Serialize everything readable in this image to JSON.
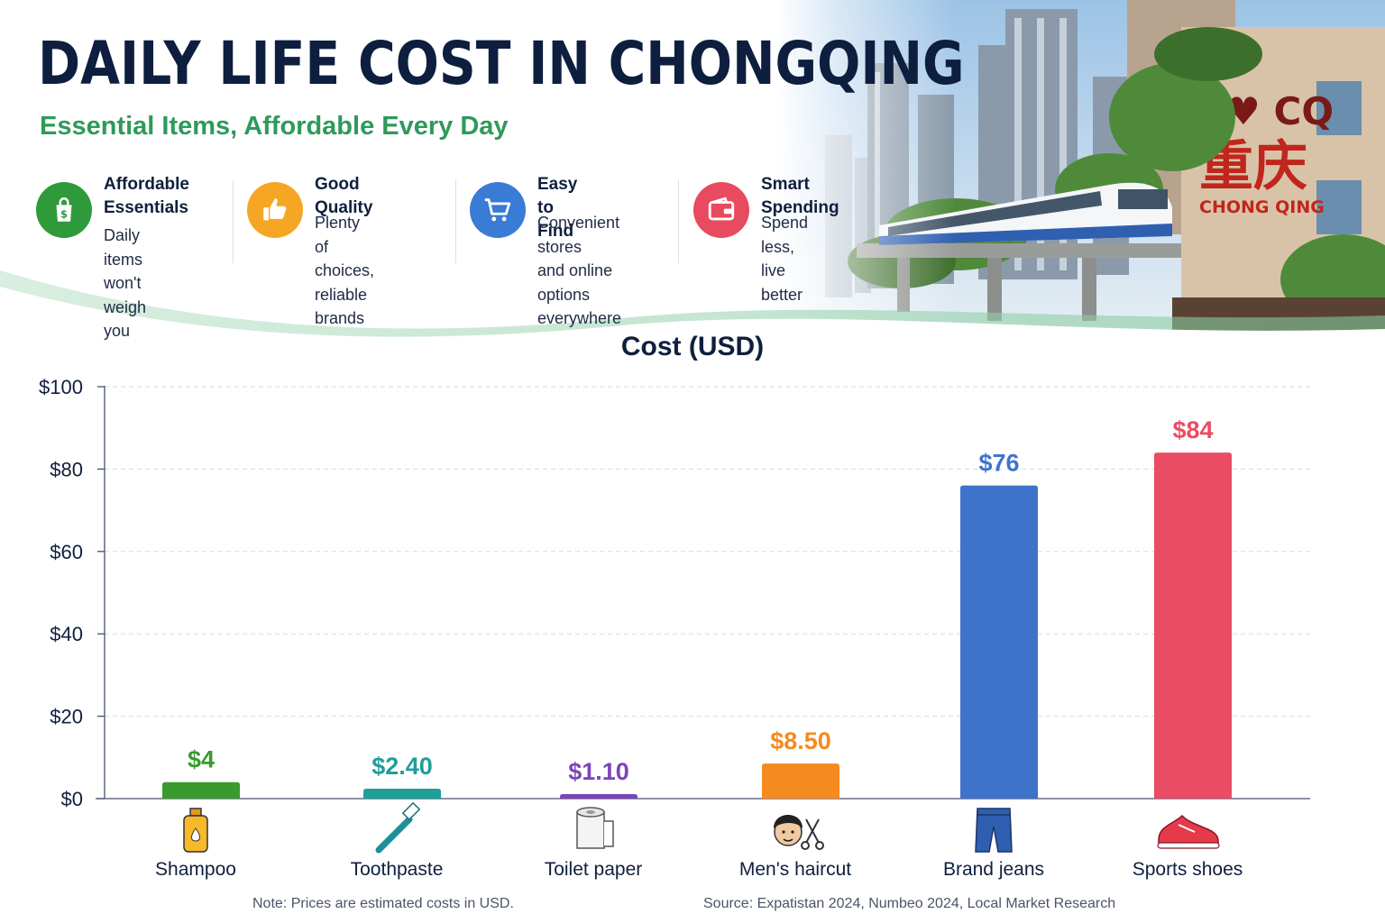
{
  "header": {
    "title": "DAILY LIFE COST IN CHONGQING",
    "subtitle": "Essential Items, Affordable Every Day",
    "sign_text": "CHONG QING",
    "sign_heart_text": "I ♥ CQ",
    "sign_chinese": "重庆"
  },
  "features": [
    {
      "title": "Affordable\nEssentials",
      "desc": "Daily items\nwon't weigh\nyou down",
      "icon": "shopping-bag-dollar-icon",
      "color": "#2e9a3a"
    },
    {
      "title": "Good Quality",
      "desc": "Plenty of choices,\nreliable brands",
      "icon": "thumbs-up-icon",
      "color": "#f5a623"
    },
    {
      "title": "Easy to Find",
      "desc": "Convenient stores\nand online options\neverywhere",
      "icon": "shopping-cart-icon",
      "color": "#3a7bd5"
    },
    {
      "title": "Smart Spending",
      "desc": "Spend less,\nlive better",
      "icon": "wallet-icon",
      "color": "#e84a5f"
    }
  ],
  "chart_data": {
    "type": "bar",
    "title": "Cost (USD)",
    "xlabel": "",
    "ylabel": "",
    "ylim": [
      0,
      100
    ],
    "yticks": [
      0,
      20,
      40,
      60,
      80,
      100
    ],
    "ytick_labels": [
      "$0",
      "$20",
      "$40",
      "$60",
      "$80",
      "$100"
    ],
    "grid": true,
    "categories": [
      "Shampoo",
      "Toothpaste",
      "Toilet paper",
      "Men's haircut",
      "Brand jeans",
      "Sports shoes"
    ],
    "values": [
      4,
      2.4,
      1.1,
      8.5,
      76,
      84
    ],
    "value_labels": [
      "$4",
      "$2.40",
      "$1.10",
      "$8.50",
      "$76",
      "$84"
    ],
    "colors": [
      "#3a9a2e",
      "#1f9e9a",
      "#7b45b8",
      "#f58a1f",
      "#3f73c9",
      "#ea4c64"
    ],
    "icons": [
      "shampoo-bottle-icon",
      "toothbrush-icon",
      "toilet-paper-icon",
      "haircut-icon",
      "jeans-icon",
      "sneaker-icon"
    ]
  },
  "footer": {
    "note": "Note: Prices are estimated costs in USD.",
    "source": "Source: Expatistan 2024, Numbeo 2024, Local Market Research"
  }
}
